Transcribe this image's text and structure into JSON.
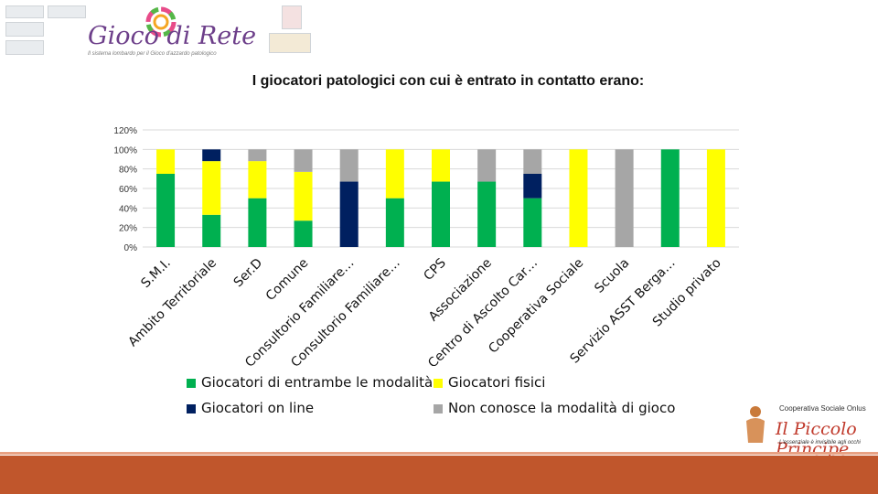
{
  "header": {
    "brand_title": "Gioco di Rete",
    "brand_subtitle": "Il sistema lombardo per il Gioco d'azzardo patologico"
  },
  "footer": {
    "org_label": "Cooperativa Sociale Onlus",
    "org_name": "Il Piccolo Principe",
    "org_tagline": "L'essenziale è invisibile agli occhi"
  },
  "colors": {
    "entrambe": "#00b050",
    "fisici": "#ffff00",
    "online": "#002060",
    "non_conosce": "#a6a6a6",
    "footer_bar": "#c0562c"
  },
  "chart_data": {
    "type": "bar",
    "stacked": true,
    "title": "I giocatori patologici con cui è entrato in contatto erano:",
    "xlabel": "",
    "ylabel": "",
    "ylim": [
      0,
      120
    ],
    "yticks": [
      "0%",
      "20%",
      "40%",
      "60%",
      "80%",
      "100%",
      "120%"
    ],
    "grid": true,
    "legend_position": "bottom",
    "categories": [
      "S.M.I.",
      "Ambito Territoriale",
      "Ser.D",
      "Comune",
      "Consultorio Familiare…",
      "Consultorio Familiare…",
      "CPS",
      "Associazione",
      "Centro di Ascolto Car…",
      "Cooperativa Sociale",
      "Scuola",
      "Servizio ASST Berga…",
      "Studio privato"
    ],
    "series": [
      {
        "name": "Giocatori di entrambe le modalità",
        "color": "#00b050",
        "values": [
          75,
          33,
          50,
          27,
          0,
          50,
          67,
          67,
          50,
          0,
          0,
          100,
          0
        ]
      },
      {
        "name": "Giocatori fisici",
        "color": "#ffff00",
        "values": [
          25,
          55,
          38,
          50,
          0,
          50,
          33,
          0,
          0,
          100,
          0,
          0,
          100
        ]
      },
      {
        "name": "Giocatori on line",
        "color": "#002060",
        "values": [
          0,
          12,
          0,
          0,
          67,
          0,
          0,
          0,
          25,
          0,
          0,
          0,
          0
        ]
      },
      {
        "name": "Non conosce la modalità di gioco",
        "color": "#a6a6a6",
        "values": [
          0,
          0,
          12,
          23,
          33,
          0,
          0,
          33,
          25,
          0,
          100,
          0,
          0
        ]
      }
    ]
  }
}
